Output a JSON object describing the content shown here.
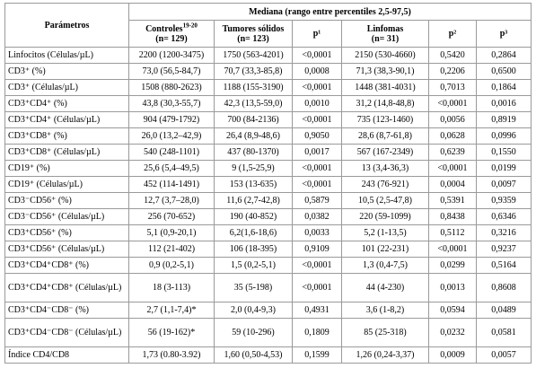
{
  "header": {
    "parameters": "Parámetros",
    "group": "Mediana (rango entre percentiles 2,5-97,5)",
    "controls": "Controles",
    "controls_ref": "19-20",
    "controls_n": "(n= 129)",
    "tumors": "Tumores sólidos",
    "tumors_n": "(n= 123)",
    "p1": "p¹",
    "lymphomas": "Linfomas",
    "lymphomas_n": "(n= 31)",
    "p2": "p²",
    "p3": "p³"
  },
  "table": {
    "rows": [
      [
        "Linfocitos (Células/µL)",
        "2200 (1200-3475)",
        "1750 (563-4201)",
        "<0,0001",
        "2150 (530-4660)",
        "0,5420",
        "0,2864"
      ],
      [
        "CD3⁺ (%)",
        "73,0 (56,5-84,7)",
        "70,7 (33,3-85,8)",
        "0,0008",
        "71,3 (38,3-90,1)",
        "0,2206",
        "0,6500"
      ],
      [
        "CD3⁺ (Células/µL)",
        "1508 (880-2623)",
        "1188 (155-3190)",
        "<0,0001",
        "1448 (381-4031)",
        "0,7013",
        "0,1864"
      ],
      [
        "CD3⁺CD4⁺ (%)",
        "43,8 (30,3-55,7)",
        "42,3 (13,5-59,0)",
        "0,0010",
        "31,2 (14,8-48,8)",
        "<0,0001",
        "0,0016"
      ],
      [
        "CD3⁺CD4⁺ (Células/µL)",
        "904 (479-1792)",
        "700 (84-2136)",
        "<0,0001",
        "735 (123-1460)",
        "0,0056",
        "0,8919"
      ],
      [
        "CD3⁺CD8⁺ (%)",
        "26,0 (13,2–42,9)",
        "26,4 (8,9-48,6)",
        "0,9050",
        "28,6 (8,7-61,8)",
        "0,0628",
        "0,0996"
      ],
      [
        "CD3⁺CD8⁺ (Células/µL)",
        "540 (248-1101)",
        "437 (80-1370)",
        "0,0017",
        "567 (167-2349)",
        "0,6239",
        "0,1550"
      ],
      [
        "CD19⁺ (%)",
        "25,6 (5,4–49,5)",
        "9 (1,5-25,9)",
        "<0,0001",
        "13 (3,4-36,3)",
        "<0,0001",
        "0,0199"
      ],
      [
        "CD19⁺ (Células/µL)",
        "452 (114-1491)",
        "153 (13-635)",
        "<0,0001",
        "243 (76-921)",
        "0,0004",
        "0,0097"
      ],
      [
        "CD3⁻CD56⁺ (%)",
        "12,7 (3,7–28,0)",
        "11,6 (2,7-42,8)",
        "0,5879",
        "10,5 (2,5-47,8)",
        "0,5391",
        "0,9359"
      ],
      [
        "CD3⁻CD56⁺ (Células/µL)",
        "256 (70-652)",
        "190 (40-852)",
        "0,0382",
        "220 (59-1099)",
        "0,8438",
        "0,6346"
      ],
      [
        "CD3⁺CD56⁺ (%)",
        "5,1 (0,9-20,1)",
        "6,2(1,6-18,6)",
        "0,0033",
        "5,2 (1-13,5)",
        "0,5112",
        "0,3216"
      ],
      [
        "CD3⁺CD56⁺ (Células/µL)",
        "112 (21-402)",
        "106 (18-395)",
        "0,9109",
        "101 (22-231)",
        "<0,0001",
        "0,9237"
      ],
      [
        "CD3⁺CD4⁺CD8⁺ (%)",
        "0,9 (0,2-5,1)",
        "1,5 (0,2-5,1)",
        "<0,0001",
        "1,3 (0,4-7,5)",
        "0,0299",
        "0,5164"
      ],
      [
        "CD3⁺CD4⁺CD8⁺ (Células/µL)",
        "18 (3-113)",
        "35 (5-198)",
        "<0,0001",
        "44 (4-230)",
        "0,0013",
        "0,8608"
      ],
      [
        "CD3⁺CD4⁻CD8⁻ (%)",
        "2,7 (1,1-7,4)*",
        "2,0 (0,4-9,3)",
        "0,4931",
        "3,6 (1-8,2)",
        "0,0594",
        "0,0489"
      ],
      [
        "CD3⁺CD4⁻CD8⁻ (Células/µL)",
        "56 (19-162)*",
        "59 (10-296)",
        "0,1809",
        "85 (25-318)",
        "0,0232",
        "0,0581"
      ],
      [
        "Índice CD4/CD8",
        "1,73 (0.80-3.92)",
        "1,60 (0,50-4,53)",
        "0,1599",
        "1,26 (0,24-3,37)",
        "0,0009",
        "0,0057"
      ]
    ]
  }
}
